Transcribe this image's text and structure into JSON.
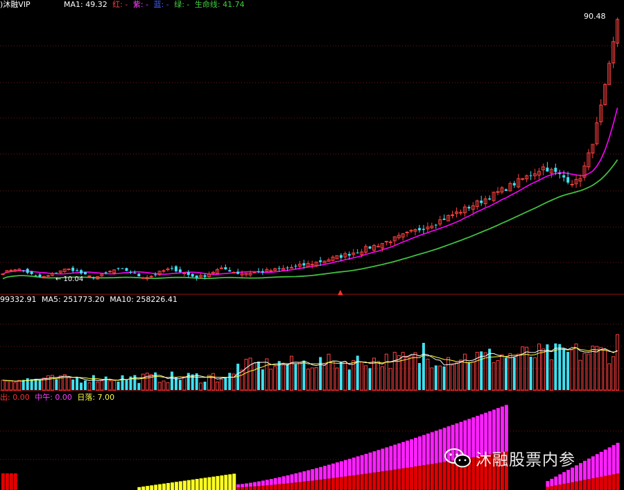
{
  "colors": {
    "up": "#ff4040",
    "down": "#40e0f0",
    "ma_line": "#ff00ff",
    "life_line": "#40c040",
    "red_line": "#ff2020",
    "grid": "#801818",
    "vol_ma5": "#ffffff",
    "vol_ma10": "#ffff40",
    "yellow": "#ffff20",
    "magenta": "#ff20ff",
    "red_fill": "#e00000"
  },
  "price_panel": {
    "title": ")沐融VIP",
    "ma1_label": "MA1: 49.32",
    "hong_label": "红: -",
    "zi_label": "紫: -",
    "lan_label": "蓝: -",
    "lv_label": "绿: -",
    "life_label": "生命线: 41.74",
    "high_label": "90.48",
    "low_label": "← 10.04"
  },
  "volume_panel": {
    "vol_label": "99332.91",
    "ma5_label": "MA5: 251773.20",
    "ma10_label": "MA10: 258226.41"
  },
  "indicator_panel": {
    "chu_label": "出: 0.00",
    "zhongwu_label": "中午: 0.00",
    "riluo_label": "日落: 7.00"
  },
  "watermark": {
    "text": "沐融股票内参",
    "icon": "wechat-icon"
  },
  "chart_data": {
    "type": "candlestick",
    "price": {
      "high": 90.48,
      "low": 10.04,
      "ma1": 49.32,
      "life_line": 41.74
    },
    "volume": {
      "last": 99332.91,
      "ma5": 251773.2,
      "ma10": 258226.41
    },
    "indicator": {
      "chu": 0.0,
      "zhongwu": 0.0,
      "riluo": 7.0
    }
  }
}
